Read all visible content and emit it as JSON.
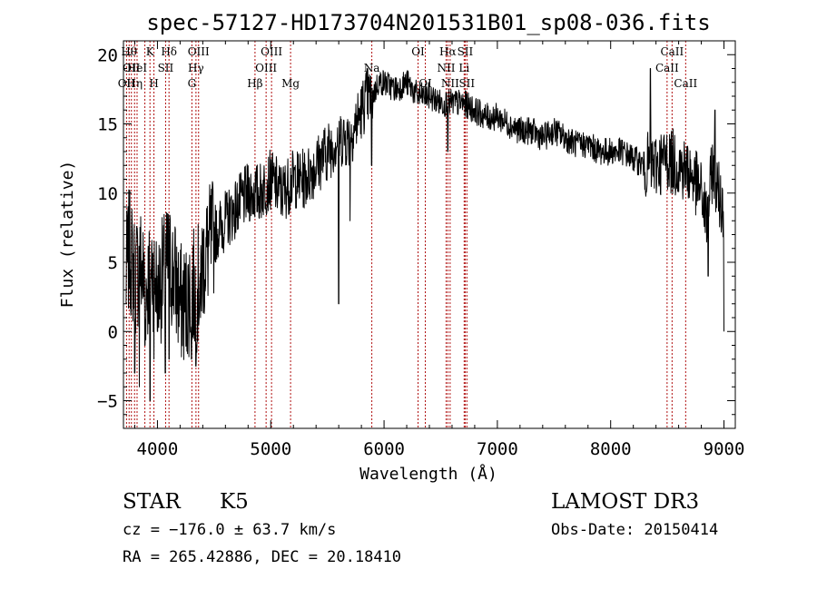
{
  "chart_data": {
    "type": "line",
    "title": "spec-57127-HD173704N201531B01_sp08-036.fits",
    "xlabel": "Wavelength (Å)",
    "ylabel": "Flux (relative)",
    "xlim": [
      3700,
      9100
    ],
    "ylim": [
      -7,
      21
    ],
    "x_ticks": [
      4000,
      5000,
      6000,
      7000,
      8000,
      9000
    ],
    "y_ticks": [
      -5,
      0,
      5,
      10,
      15,
      20
    ],
    "grid": false,
    "line_color": "#000000",
    "marker_color": "#b01010",
    "series": [
      {
        "x": [
          3700,
          3750,
          3800,
          3850,
          3900,
          3950,
          4000,
          4050,
          4100,
          4150,
          4200,
          4250,
          4300,
          4350,
          4400,
          4450,
          4500,
          4600,
          4700,
          4800,
          4900,
          5000,
          5100,
          5200,
          5300,
          5400,
          5500,
          5600,
          5700,
          5800,
          5850,
          5900,
          5950,
          6000,
          6100,
          6200,
          6300,
          6400,
          6500,
          6600,
          6700,
          6800,
          6900,
          7000,
          7100,
          7200,
          7300,
          7400,
          7500,
          7600,
          7700,
          7800,
          7900,
          8000,
          8100,
          8200,
          8300,
          8400,
          8500,
          8600,
          8700,
          8800,
          8850,
          8900,
          8950,
          9000
        ],
        "y": [
          2,
          6,
          4,
          5,
          3,
          5,
          3,
          4,
          5,
          4,
          2,
          2,
          3,
          3,
          5,
          6,
          7,
          8,
          9,
          10,
          10,
          11,
          10,
          11,
          11,
          12,
          13,
          14,
          14,
          16,
          17,
          17,
          18,
          18,
          17.5,
          18,
          17,
          17,
          16.5,
          16.5,
          16.5,
          16,
          15.5,
          15.5,
          15,
          14.5,
          14.5,
          14,
          14.5,
          14,
          13.5,
          13.5,
          13,
          13,
          13,
          12.5,
          12,
          12,
          12.5,
          12,
          11.5,
          10,
          8,
          12,
          10,
          9
        ],
        "features": [
          {
            "x": 3720,
            "y": 2
          },
          {
            "x": 3800,
            "y": -3
          },
          {
            "x": 3840,
            "y": -4
          },
          {
            "x": 3890,
            "y": -1
          },
          {
            "x": 3934,
            "y": -5
          },
          {
            "x": 3969,
            "y": -2
          },
          {
            "x": 4000,
            "y": 0
          },
          {
            "x": 4070,
            "y": -3
          },
          {
            "x": 4102,
            "y": -2
          },
          {
            "x": 4300,
            "y": -2
          },
          {
            "x": 4340,
            "y": -2.5
          },
          {
            "x": 4380,
            "y": 1
          },
          {
            "x": 5600,
            "y": 2
          },
          {
            "x": 5700,
            "y": 8
          },
          {
            "x": 5890,
            "y": 12
          },
          {
            "x": 6563,
            "y": 13
          },
          {
            "x": 7800,
            "y": 14
          },
          {
            "x": 8350,
            "y": 19
          },
          {
            "x": 8860,
            "y": 4
          },
          {
            "x": 8920,
            "y": 16
          },
          {
            "x": 9000,
            "y": 0
          }
        ]
      }
    ],
    "line_markers": [
      {
        "x": 3727,
        "label": "OII",
        "row": 2
      },
      {
        "x": 3750,
        "label": "Hθ",
        "row": 0
      },
      {
        "x": 3770,
        "label": "OII",
        "row": 1
      },
      {
        "x": 3798,
        "label": "Hη",
        "row": 2
      },
      {
        "x": 3820,
        "label": "HeI",
        "row": 1
      },
      {
        "x": 3889,
        "label": "",
        "row": 0
      },
      {
        "x": 3934,
        "label": "K",
        "row": 0
      },
      {
        "x": 3969,
        "label": "H",
        "row": 2
      },
      {
        "x": 4072,
        "label": "SII",
        "row": 1
      },
      {
        "x": 4102,
        "label": "Hδ",
        "row": 0
      },
      {
        "x": 4304,
        "label": "G",
        "row": 2
      },
      {
        "x": 4340,
        "label": "Hγ",
        "row": 1
      },
      {
        "x": 4363,
        "label": "OIII",
        "row": 0
      },
      {
        "x": 4861,
        "label": "Hβ",
        "row": 2
      },
      {
        "x": 4959,
        "label": "OIII",
        "row": 1
      },
      {
        "x": 5007,
        "label": "OIII",
        "row": 0
      },
      {
        "x": 5175,
        "label": "Mg",
        "row": 2
      },
      {
        "x": 5892,
        "label": "Na",
        "row": 1
      },
      {
        "x": 6300,
        "label": "OI",
        "row": 0
      },
      {
        "x": 6364,
        "label": "OI",
        "row": 2
      },
      {
        "x": 6548,
        "label": "NII",
        "row": 1
      },
      {
        "x": 6563,
        "label": "Hα",
        "row": 0
      },
      {
        "x": 6583,
        "label": "NII",
        "row": 2
      },
      {
        "x": 6707,
        "label": "Li",
        "row": 1
      },
      {
        "x": 6716,
        "label": "SII",
        "row": 0
      },
      {
        "x": 6731,
        "label": "SII",
        "row": 2
      },
      {
        "x": 8498,
        "label": "CaII",
        "row": 1
      },
      {
        "x": 8542,
        "label": "CaII",
        "row": 0
      },
      {
        "x": 8662,
        "label": "CaII",
        "row": 2
      }
    ]
  },
  "info": {
    "object_class": "STAR",
    "subclass": "K5",
    "survey": "LAMOST DR3",
    "redshift": "cz = −176.0 ± 63.7 km/s",
    "obs_date": "Obs-Date: 20150414",
    "coords": "RA = 265.42886, DEC =  20.18410"
  }
}
